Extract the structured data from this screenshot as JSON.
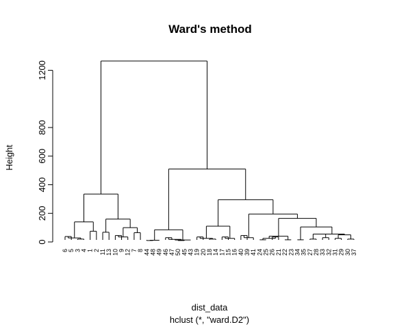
{
  "chart_data": {
    "type": "dendrogram",
    "title": "Ward's method",
    "xlabel": "dist_data",
    "sublabel": "hclust (*, \"ward.D2\")",
    "ylabel": "Height",
    "ylim": [
      0,
      1300
    ],
    "yticks": [
      0,
      200,
      400,
      600,
      800,
      1200
    ],
    "leaves": [
      "6",
      "5",
      "3",
      "4",
      "1",
      "2",
      "11",
      "13",
      "10",
      "9",
      "12",
      "7",
      "8",
      "44",
      "48",
      "49",
      "46",
      "47",
      "50",
      "45",
      "43",
      "19",
      "20",
      "18",
      "14",
      "17",
      "15",
      "16",
      "40",
      "39",
      "41",
      "24",
      "25",
      "26",
      "21",
      "22",
      "23",
      "34",
      "35",
      "27",
      "28",
      "33",
      "32",
      "31",
      "29",
      "30",
      "37"
    ],
    "merges": [
      {
        "children": [
          "6",
          "5"
        ],
        "height": 38
      },
      {
        "children": [
          "3",
          "4"
        ],
        "height": 20
      },
      {
        "children": [
          "6-5",
          "3-4"
        ],
        "height": 28
      },
      {
        "children": [
          "1",
          "2"
        ],
        "height": 75
      },
      {
        "children": [
          "6-5-3-4",
          "1-2"
        ],
        "height": 140
      },
      {
        "children": [
          "11",
          "13"
        ],
        "height": 68
      },
      {
        "children": [
          "10",
          "9"
        ],
        "height": 45
      },
      {
        "children": [
          "10-9",
          "12"
        ],
        "height": 35
      },
      {
        "children": [
          "7",
          "8"
        ],
        "height": 65
      },
      {
        "children": [
          "10-9-12",
          "7-8"
        ],
        "height": 100
      },
      {
        "children": [
          "11-13",
          "10-9-12-7-8"
        ],
        "height": 160
      },
      {
        "children": [
          "A",
          "B"
        ],
        "height": 335
      },
      {
        "children": [
          "44",
          "48"
        ],
        "height": 10
      },
      {
        "children": [
          "44-48",
          "49"
        ],
        "height": 12
      },
      {
        "children": [
          "46",
          "47"
        ],
        "height": 30
      },
      {
        "children": [
          "50",
          "45"
        ],
        "height": 10
      },
      {
        "children": [
          "46-47",
          "50-45"
        ],
        "height": 18
      },
      {
        "children": [
          "x",
          "43"
        ],
        "height": 14
      },
      {
        "children": [
          "C1",
          "C2"
        ],
        "height": 85
      },
      {
        "children": [
          "19",
          "20"
        ],
        "height": 35
      },
      {
        "children": [
          "18",
          "14"
        ],
        "height": 20
      },
      {
        "children": [
          "19-20",
          "18-14"
        ],
        "height": 25
      },
      {
        "children": [
          "17",
          "15"
        ],
        "height": 35
      },
      {
        "children": [
          "16",
          "y"
        ],
        "height": 25
      },
      {
        "children": [
          "D1",
          "D2"
        ],
        "height": 110
      },
      {
        "children": [
          "40",
          "39"
        ],
        "height": 45
      },
      {
        "children": [
          "40-39",
          "41"
        ],
        "height": 30
      },
      {
        "children": [
          "24",
          "25"
        ],
        "height": 15
      },
      {
        "children": [
          "26",
          "21"
        ],
        "height": 35
      },
      {
        "children": [
          "22",
          "23"
        ],
        "height": 15
      },
      {
        "children": [
          "34",
          "35"
        ],
        "height": 15
      },
      {
        "children": [
          "27",
          "28"
        ],
        "height": 55
      },
      {
        "children": [
          "33",
          "32"
        ],
        "height": 30
      },
      {
        "children": [
          "31",
          "29"
        ],
        "height": 25
      },
      {
        "children": [
          "30",
          "37"
        ],
        "height": 20
      },
      {
        "children": [
          "E1",
          "E2"
        ],
        "height": 105
      },
      {
        "children": [
          "E",
          "F"
        ],
        "height": 165
      },
      {
        "children": [
          "G",
          "H"
        ],
        "height": 195
      },
      {
        "children": [
          "I",
          "J"
        ],
        "height": 295
      },
      {
        "children": [
          "C",
          "K"
        ],
        "height": 510
      },
      {
        "children": [
          "root-left",
          "root-right"
        ],
        "height": 1265
      }
    ]
  }
}
